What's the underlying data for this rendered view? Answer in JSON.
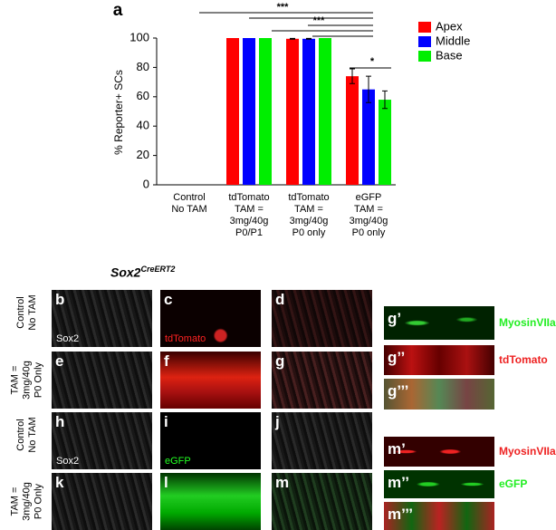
{
  "chart_data": {
    "type": "bar",
    "panel_label": "a",
    "ylabel": "% Reporter+ SCs",
    "categories": [
      "Control\nNo TAM",
      "tdTomato\nTAM =\n3mg/40g\nP0/P1",
      "tdTomato\nTAM =\n3mg/40g\nP0 only",
      "eGFP\nTAM =\n3mg/40g\nP0 only"
    ],
    "series": [
      {
        "name": "Apex",
        "color": "#ff0000",
        "values": [
          0,
          100,
          99.5,
          74
        ],
        "errors": [
          0,
          0,
          0.3,
          5
        ]
      },
      {
        "name": "Middle",
        "color": "#0000ff",
        "values": [
          0,
          100,
          99.5,
          65
        ],
        "errors": [
          0,
          0,
          0.3,
          9
        ]
      },
      {
        "name": "Base",
        "color": "#00ee00",
        "values": [
          0,
          100,
          100,
          58
        ],
        "errors": [
          0,
          0,
          0,
          6
        ]
      }
    ],
    "ylim": [
      0,
      100
    ],
    "yticks": [
      0,
      20,
      40,
      60,
      80,
      100
    ],
    "legend": "top-right",
    "significance": [
      "***",
      "***",
      "*"
    ]
  },
  "figure": {
    "title": "Sox2",
    "title_sup": "CreERT2",
    "rows": [
      "Control\nNo TAM",
      "TAM =\n3mg/40g\nP0 Only",
      "Control\nNo TAM",
      "TAM =\n3mg/40g\nP0 Only"
    ],
    "panels": [
      {
        "letter": "b",
        "channel": "Sox2"
      },
      {
        "letter": "c",
        "channel": "tdTomato"
      },
      {
        "letter": "d"
      },
      {
        "letter": "e"
      },
      {
        "letter": "f"
      },
      {
        "letter": "g"
      },
      {
        "letter": "h",
        "channel": "Sox2"
      },
      {
        "letter": "i",
        "channel": "eGFP"
      },
      {
        "letter": "j"
      },
      {
        "letter": "k"
      },
      {
        "letter": "l"
      },
      {
        "letter": "m"
      }
    ],
    "details": [
      {
        "letter": "g’",
        "channel": "MyosinVIIa"
      },
      {
        "letter": "g’’",
        "channel": "tdTomato"
      },
      {
        "letter": "g’’’"
      },
      {
        "letter": "m’",
        "channel": "MyosinVIIa"
      },
      {
        "letter": "m’’",
        "channel": "eGFP"
      },
      {
        "letter": "m’’’"
      }
    ]
  }
}
